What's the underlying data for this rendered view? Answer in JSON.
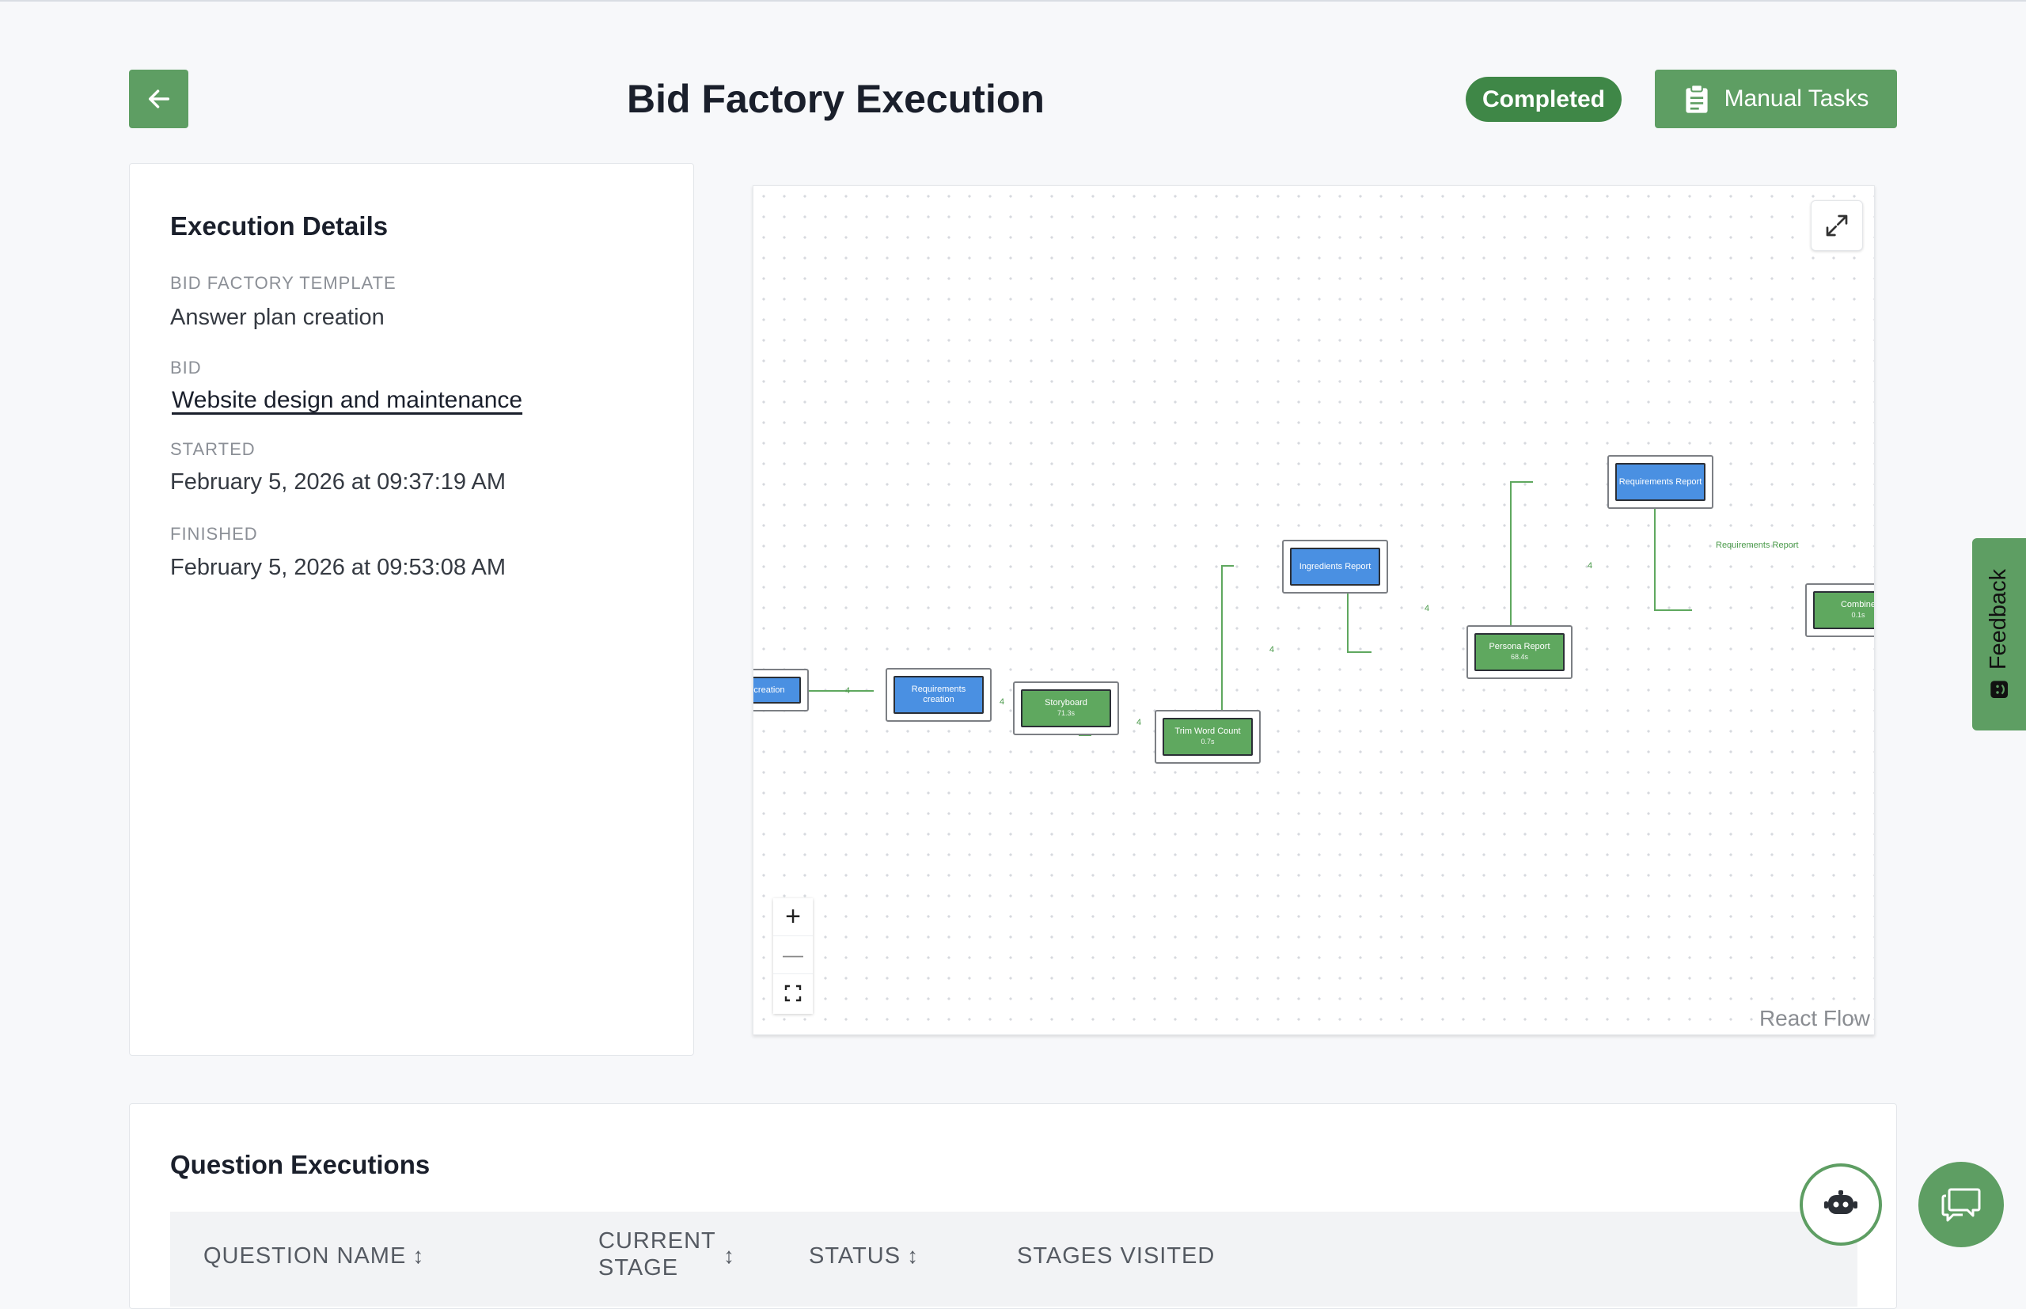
{
  "header": {
    "title": "Bid Factory Execution",
    "status": "Completed",
    "manual_tasks_label": "Manual Tasks"
  },
  "details": {
    "title": "Execution Details",
    "template_label": "BID FACTORY TEMPLATE",
    "template_value": "Answer plan creation",
    "bid_label": "BID",
    "bid_value": "Website design and maintenance",
    "started_label": "STARTED",
    "started_value": "February 5, 2026 at 09:37:19 AM",
    "finished_label": "FINISHED",
    "finished_value": "February 5, 2026 at 09:53:08 AM"
  },
  "flow": {
    "nodes": [
      {
        "label": "creation",
        "sub": ""
      },
      {
        "label": "Requirements creation",
        "sub": ""
      },
      {
        "label": "Storyboard",
        "sub": "71.3s"
      },
      {
        "label": "Trim Word Count",
        "sub": "0.7s"
      },
      {
        "label": "Ingredients Report",
        "sub": ""
      },
      {
        "label": "Persona Report",
        "sub": "68.4s"
      },
      {
        "label": "Requirements Report",
        "sub": ""
      },
      {
        "label": "Combine",
        "sub": "0.1s"
      }
    ],
    "edge_labels": {
      "e1": "4",
      "e2": "4",
      "e3": "4",
      "e4": "4",
      "e5": "4",
      "e6": "4",
      "e7": "Requirements Report"
    },
    "controls": {
      "zoom_in": "+",
      "zoom_out": "—"
    },
    "attribution": "React Flow"
  },
  "feedback": {
    "label": "Feedback"
  },
  "questions": {
    "title": "Question Executions",
    "columns": [
      "QUESTION NAME",
      "CURRENT STAGE",
      "STATUS",
      "STAGES VISITED"
    ]
  },
  "colors": {
    "accent": "#5e9e63",
    "badge": "#3f8747",
    "node_blue": "#4a90e2",
    "node_green": "#5fa85f"
  }
}
